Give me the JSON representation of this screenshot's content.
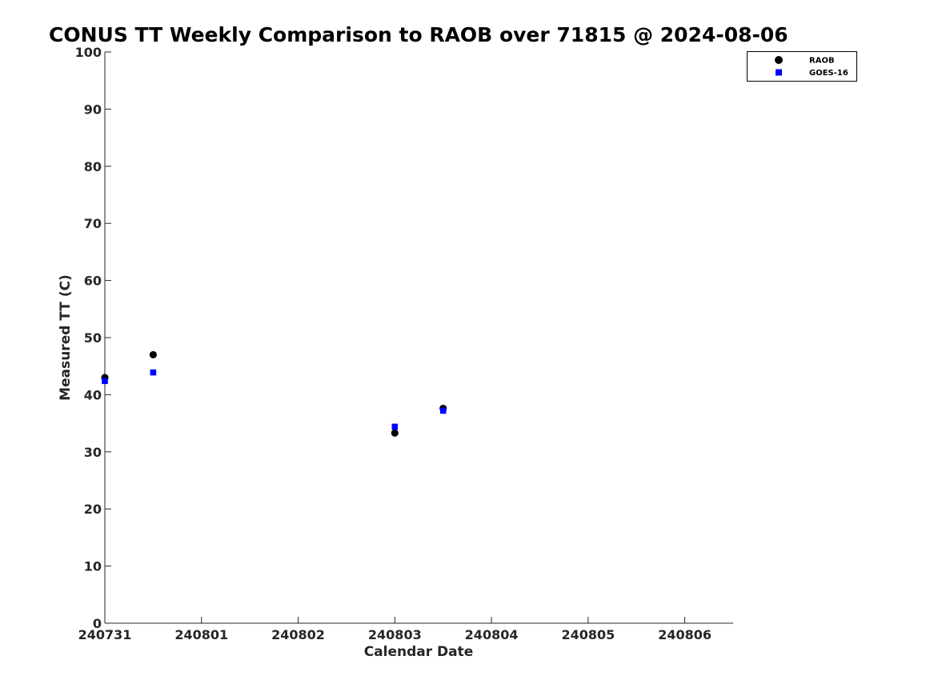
{
  "chart_data": {
    "type": "scatter",
    "title": "CONUS TT Weekly Comparison to RAOB over 71815 @ 2024-08-06",
    "xlabel": "Calendar Date",
    "ylabel": "Measured TT (C)",
    "xlim": [
      "2024-07-31 00:00",
      "2024-08-06 12:00"
    ],
    "ylim": [
      0,
      100
    ],
    "xticks": [
      {
        "date": "2024-07-31",
        "label": "240731"
      },
      {
        "date": "2024-08-01",
        "label": "240801"
      },
      {
        "date": "2024-08-02",
        "label": "240802"
      },
      {
        "date": "2024-08-03",
        "label": "240803"
      },
      {
        "date": "2024-08-04",
        "label": "240804"
      },
      {
        "date": "2024-08-05",
        "label": "240805"
      },
      {
        "date": "2024-08-06",
        "label": "240806"
      }
    ],
    "yticks": [
      0,
      10,
      20,
      30,
      40,
      50,
      60,
      70,
      80,
      90,
      100
    ],
    "grid": false,
    "legend_position": "top-right",
    "series": [
      {
        "name": "RAOB",
        "marker": "circle",
        "color": "#000000",
        "points": [
          {
            "x": "2024-07-31 00:00",
            "y": 43.0
          },
          {
            "x": "2024-07-31 12:00",
            "y": 47.0
          },
          {
            "x": "2024-08-03 00:00",
            "y": 33.3
          },
          {
            "x": "2024-08-03 12:00",
            "y": 37.6
          }
        ]
      },
      {
        "name": "GOES-16",
        "marker": "square",
        "color": "#0000ff",
        "points": [
          {
            "x": "2024-07-31 00:00",
            "y": 42.4
          },
          {
            "x": "2024-07-31 12:00",
            "y": 43.9
          },
          {
            "x": "2024-08-03 00:00",
            "y": 34.4
          },
          {
            "x": "2024-08-03 12:00",
            "y": 37.2
          }
        ]
      }
    ]
  }
}
